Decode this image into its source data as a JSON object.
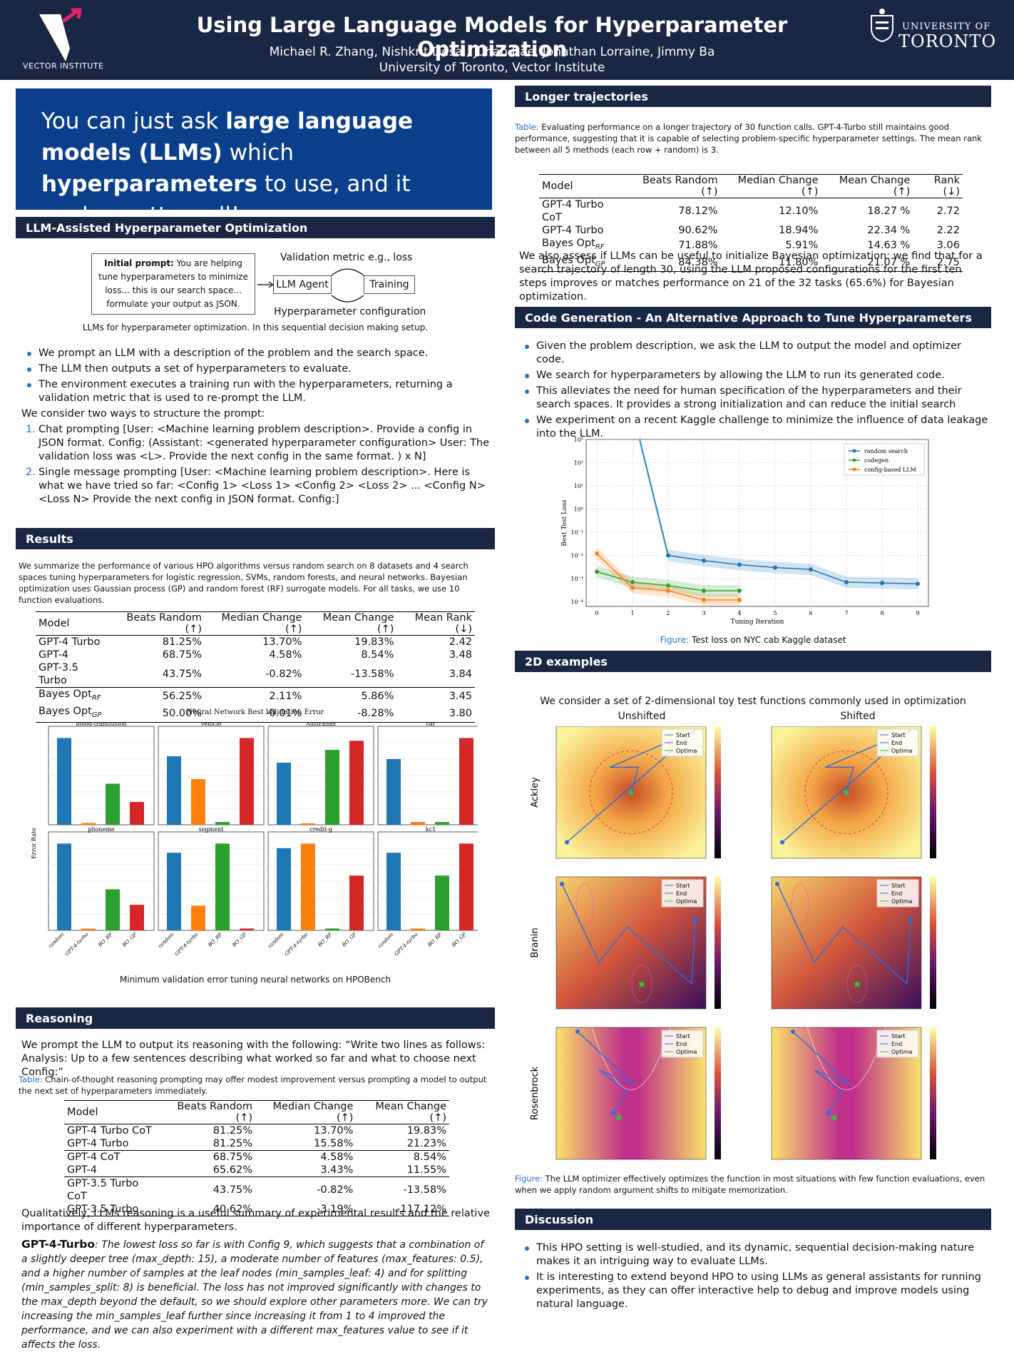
{
  "header": {
    "logo_text": "VECTOR INSTITUTE",
    "title": "Using Large Language Models for Hyperparameter Optimization",
    "authors": "Michael R. Zhang, Nishkrit Desai, Juhan Bae, Jonathan Lorraine, Jimmy Ba",
    "affiliation": "University of Toronto, Vector Institute",
    "uni_small": "UNIVERSITY OF",
    "uni_big": "TORONTO"
  },
  "banner": {
    "p1": "You can just ask ",
    "b1": "large language models (LLMs)",
    "p2": " which ",
    "b2": "hyperparameters",
    "p3": " to use, and it works pretty well!"
  },
  "llm_section": {
    "heading": "LLM-Assisted Hyperparameter Optimization",
    "prompt_bold": "Initial prompt:",
    "prompt_text": " You are helping tune hyperparameters to minimize loss... this is our search space... formulate your output as JSON.",
    "metric_label": "Validation metric e.g., loss",
    "llm_agent": "LLM Agent",
    "training": "Training",
    "config_label": "Hyperparameter configuration",
    "diagram_caption": "LLMs for hyperparameter optimization. In this sequential decision making setup.",
    "bullets": [
      "We prompt an LLM with a description of the problem and the search space.",
      "The LLM then outputs a set of hyperparameters to evaluate.",
      "The environment executes a training run with the hyperparameters, returning a validation metric that is used to re-prompt the LLM."
    ],
    "ways_intro": "We consider two ways to structure the prompt:",
    "ways": [
      "Chat prompting [User: <Machine learning problem description>. Provide a config in JSON format. Config: (Assistant: <generated hyperparameter configuration> User: The validation loss was <L>. Provide the next config in the same format. ) x N]",
      "Single message prompting [User: <Machine learning problem description>. Here is what we have tried so far: <Config 1> <Loss 1>   <Config 2> <Loss 2>   ...  <Config N> <Loss N>   Provide the next config in JSON format. Config:]"
    ]
  },
  "results": {
    "heading": "Results",
    "intro": "We summarize the performance of various HPO algorithms versus random search on 8 datasets and 4 search spaces tuning hyperparameters for logistic regression, SVMs, random forests, and neural networks. Bayesian optimization uses Gaussian process (GP) and random forest (RF) surrogate models. For all tasks, we use 10 function evaluations.",
    "table_header": [
      "Model",
      "Beats Random (↑)",
      "Median Change (↑)",
      "Mean Change (↑)",
      "Mean Rank (↓)"
    ],
    "table_rows": [
      [
        "GPT-4 Turbo",
        "81.25%",
        "13.70%",
        "19.83%",
        "2.42"
      ],
      [
        "GPT-4",
        "68.75%",
        "4.58%",
        "8.54%",
        "3.48"
      ],
      [
        "GPT-3.5 Turbo",
        "43.75%",
        "-0.82%",
        "-13.58%",
        "3.84"
      ],
      [
        "Bayes Opt",
        "56.25%",
        "2.11%",
        "5.86%",
        "3.45"
      ],
      [
        "Bayes Opt",
        "50.00%",
        "-0.01%",
        "-8.28%",
        "3.80"
      ]
    ],
    "subs": [
      "",
      "",
      "",
      "RF",
      "GP"
    ],
    "chart_title": "Neural Network Best Validation Error",
    "chart_ylabel": "Error Rate",
    "chart_caption": "Minimum validation error tuning neural networks on HPOBench"
  },
  "reasoning": {
    "heading": "Reasoning",
    "intro": "We prompt the LLM to output its reasoning with the following: “Write two lines as follows: Analysis: Up to a few sentences describing what worked so far and what to choose next Config:”",
    "table_label": "Table:",
    "table_caption": " Chain-of-thought reasoning prompting may offer modest improvement versus prompting a model to output the next set of hyperparameters immediately.",
    "table_header": [
      "Model",
      "Beats Random (↑)",
      "Median Change (↑)",
      "Mean Change (↑)"
    ],
    "table_rows": [
      [
        "GPT-4 Turbo CoT",
        "81.25%",
        "13.70%",
        "19.83%"
      ],
      [
        "GPT-4 Turbo",
        "81.25%",
        "15.58%",
        "21.23%"
      ],
      [
        "GPT-4 CoT",
        "68.75%",
        "4.58%",
        "8.54%"
      ],
      [
        "GPT-4",
        "65.62%",
        "3.43%",
        "11.55%"
      ],
      [
        "GPT-3.5 Turbo CoT",
        "43.75%",
        "-0.82%",
        "-13.58%"
      ],
      [
        "GPT-3.5 Turbo",
        "40.62%",
        "-3.19%",
        "-117.12%"
      ]
    ],
    "qualitative": "Qualitatively, LLMs reasoning is a useful summary of experimental results and the relative importance of different hyperparameters.",
    "quote_label": "GPT-4-Turbo",
    "quote": ": The lowest loss so far is with Config 9, which suggests that a combination of a slightly deeper tree (max_depth: 15), a moderate number of features (max_features: 0.5), and a higher number of samples at the leaf nodes (min_samples_leaf: 4) and for splitting (min_samples_split: 8) is beneficial. The loss has not improved significantly with changes to the max_depth beyond the default, so we should explore other parameters more. We can try increasing the min_samples_leaf further since increasing it from 1 to 4 improved the performance, and we can also experiment with a different max_features value to see if it affects the loss."
  },
  "longer": {
    "heading": "Longer trajectories",
    "table_label": "Table:",
    "table_caption": " Evaluating performance on a longer trajectory of 30 function calls. GPT-4-Turbo still maintains good performance, suggesting that it is capable of selecting problem-specific hyperparameter settings. The mean rank between all 5 methods (each row + random) is 3.",
    "table_header": [
      "Model",
      "Beats Random (↑)",
      "Median Change (↑)",
      "Mean Change (↑)",
      "Rank (↓)"
    ],
    "table_rows": [
      [
        "GPT-4 Turbo CoT",
        "78.12%",
        "12.10%",
        "18.27 %",
        "2.72"
      ],
      [
        "GPT-4 Turbo",
        "90.62%",
        "18.94%",
        "22.34 %",
        "2.22"
      ],
      [
        "Bayes Opt",
        "71.88%",
        "5.91%",
        "14.63 %",
        "3.06"
      ],
      [
        "Bayes Opt",
        "84.38%",
        "11.80%",
        "21.07 %",
        "2.75"
      ]
    ],
    "subs": [
      "",
      "",
      "RF",
      "GP"
    ],
    "after": "We also assess if LLMs can be useful to initialize Bayesian optimization: we find that for a search trajectory of length 30, using the LLM proposed configurations for the first ten steps improves or matches performance on 21 of the 32 tasks (65.6%) for Bayesian optimization."
  },
  "codegen": {
    "heading": "Code Generation - An Alternative Approach to Tune Hyperparameters",
    "bullets": [
      "Given the problem description, we ask the LLM to output the model and optimizer code.",
      "We search for hyperparameters by allowing the LLM to run its generated code.",
      "This alleviates the need for human specification of the hyperparameters and their search spaces. It provides a strong initialization and can reduce the initial search",
      "We experiment on a recent Kaggle challenge to minimize the influence of data leakage into the LLM."
    ],
    "fig_label": "Figure:",
    "fig_caption": " Test loss on NYC cab Kaggle dataset"
  },
  "twod": {
    "heading": "2D examples",
    "intro": "We consider a set of 2-dimensional toy test functions commonly used in optimization",
    "col_unshifted": "Unshifted",
    "col_shifted": "Shifted",
    "rows": [
      "Ackley",
      "Branin",
      "Rosenbrock"
    ],
    "legend": [
      "Start",
      "End",
      "Optima"
    ],
    "fig_label": "Figure:",
    "fig_caption": " The LLM optimizer effectively optimizes the function in most situations with few function evaluations, even when we apply random argument shifts to mitigate memorization."
  },
  "discussion": {
    "heading": "Discussion",
    "bullets": [
      "This HPO setting is well-studied, and its dynamic, sequential decision-making nature makes it an intriguing way to evaluate LLMs.",
      "It is interesting to extend beyond HPO to using LLMs as general assistants for running experiments, as they can offer interactive help to debug and improve models using natural language."
    ]
  },
  "chart_data": [
    {
      "type": "bar",
      "title": "Neural Network Best Validation Error",
      "ylabel": "Error Rate",
      "categories": [
        "random",
        "GPT-4-turbo",
        "BO_RF",
        "BO_GP"
      ],
      "colors": [
        "#1f77b4",
        "#ff7f0e",
        "#2ca02c",
        "#d62728"
      ],
      "panels": [
        {
          "name": "blood-transfusion",
          "values": [
            0.95,
            0.02,
            0.45,
            0.25
          ]
        },
        {
          "name": "vehicle",
          "values": [
            0.75,
            0.5,
            0.03,
            0.95
          ]
        },
        {
          "name": "Australian",
          "values": [
            0.68,
            0.0,
            0.82,
            0.92
          ]
        },
        {
          "name": "car",
          "values": [
            0.72,
            0.03,
            0.03,
            0.95
          ]
        },
        {
          "name": "phoneme",
          "values": [
            0.95,
            0.02,
            0.45,
            0.28
          ]
        },
        {
          "name": "segment",
          "values": [
            0.85,
            0.27,
            0.95,
            0.02
          ]
        },
        {
          "name": "credit-g",
          "values": [
            0.9,
            0.95,
            0.02,
            0.6
          ]
        },
        {
          "name": "kc1",
          "values": [
            0.85,
            0.02,
            0.6,
            0.95
          ]
        }
      ]
    },
    {
      "type": "line",
      "xlabel": "Tuning Iteration",
      "ylabel": "Best Test Loss",
      "yscale": "log",
      "ylim": [
        0.0001,
        1000
      ],
      "yticks": [
        "10⁻⁴",
        "10⁻³",
        "10⁻²",
        "10⁻¹",
        "10⁰",
        "10¹",
        "10²",
        "10³"
      ],
      "x": [
        0,
        1,
        2,
        3,
        4,
        5,
        6,
        7,
        8,
        9
      ],
      "series": [
        {
          "name": "random search",
          "color": "#1f77b4",
          "x": [
            1.2,
            2,
            3,
            4,
            5,
            6,
            7,
            8,
            9
          ],
          "y": [
            1000,
            0.01,
            0.006,
            0.004,
            0.003,
            0.0025,
            0.0007,
            0.00065,
            0.0006
          ]
        },
        {
          "name": "codegen",
          "color": "#2ca02c",
          "x": [
            0,
            1,
            2,
            3,
            4
          ],
          "y": [
            0.002,
            0.0007,
            0.0005,
            0.0003,
            0.0003
          ]
        },
        {
          "name": "config-based LLM",
          "color": "#ff7f0e",
          "x": [
            0,
            1,
            2,
            3,
            4
          ],
          "y": [
            0.012,
            0.0004,
            0.0003,
            0.00012,
            0.00012
          ]
        }
      ]
    }
  ]
}
